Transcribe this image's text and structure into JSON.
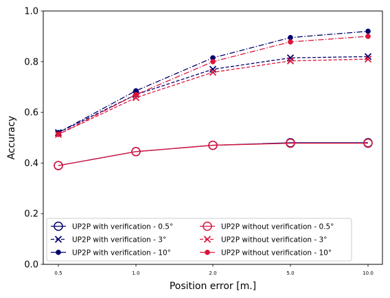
{
  "chart_data": {
    "type": "line",
    "xlabel": "Position error [m.]",
    "ylabel": "Accuracy",
    "x_tick_labels": [
      "0.5",
      "1.0",
      "2.0",
      "5.0",
      "10.0"
    ],
    "y_tick_labels": [
      "0.0",
      "0.2",
      "0.4",
      "0.6",
      "0.8",
      "1.0"
    ],
    "y_ticks": [
      0.0,
      0.2,
      0.4,
      0.6,
      0.8,
      1.0
    ],
    "ylim": [
      0,
      1
    ],
    "grid": false,
    "legend_placement": "lower-center",
    "series": [
      {
        "name": "UP2P with verification - 0.5°",
        "color": "#00006e",
        "linestyle": "solid",
        "marker": "open-circle",
        "values": [
          0.39,
          0.445,
          0.47,
          0.48,
          0.48
        ]
      },
      {
        "name": "UP2P with verification - 3°",
        "color": "#00006e",
        "linestyle": "dashed",
        "marker": "x",
        "values": [
          0.52,
          0.67,
          0.77,
          0.815,
          0.82
        ]
      },
      {
        "name": "UP2P with verification - 10°",
        "color": "#00006e",
        "linestyle": "dashdot",
        "marker": "filled-circle",
        "values": [
          0.52,
          0.685,
          0.815,
          0.895,
          0.92
        ]
      },
      {
        "name": "UP2P without verification - 0.5°",
        "color": "#dc143c",
        "linestyle": "solid",
        "marker": "open-circle",
        "values": [
          0.39,
          0.445,
          0.47,
          0.478,
          0.478
        ]
      },
      {
        "name": "UP2P without verification - 3°",
        "color": "#dc143c",
        "linestyle": "dashed",
        "marker": "x",
        "values": [
          0.513,
          0.658,
          0.758,
          0.803,
          0.81
        ]
      },
      {
        "name": "UP2P without verification - 10°",
        "color": "#dc143c",
        "linestyle": "dashdot",
        "marker": "filled-circle",
        "values": [
          0.513,
          0.67,
          0.8,
          0.878,
          0.9
        ]
      }
    ]
  }
}
